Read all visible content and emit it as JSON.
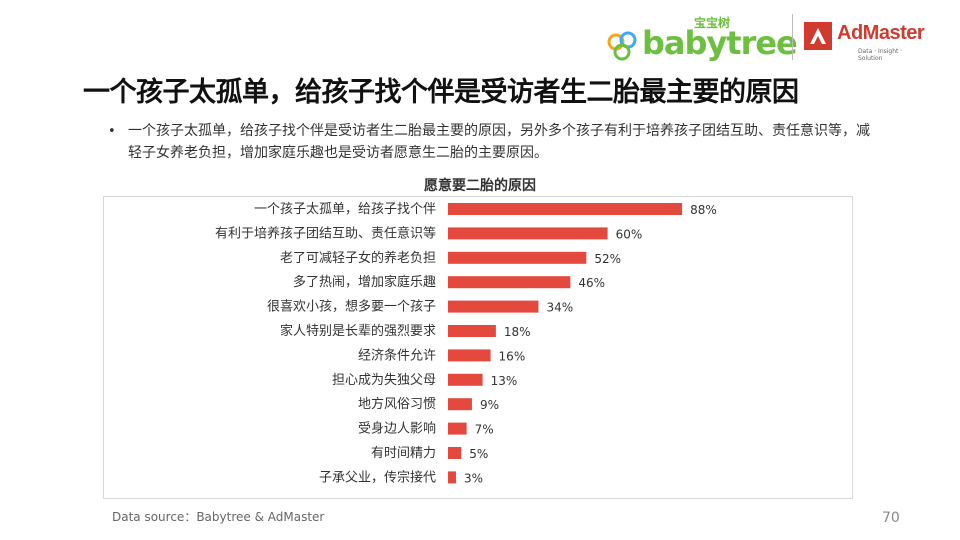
{
  "header": {
    "babytree_sub": "宝宝树",
    "babytree_name": "babytree",
    "admaster_name": "AdMaster",
    "admaster_tagline": "Data · Insight · Solution"
  },
  "slide": {
    "title": "一个孩子太孤单，给孩子找个伴是受访者生二胎最主要的原因",
    "bullet": "一个孩子太孤单，给孩子找个伴是受访者生二胎最主要的原因，另外多个孩子有利于培养孩子团结互助、责任意识等，减轻子女养老负担，增加家庭乐趣也是受访者愿意生二胎的主要原因。",
    "source": "Data source：Babytree & AdMaster",
    "page_number": "70"
  },
  "colors": {
    "bar": "#e4493e",
    "brand_green": "#6cbf3f",
    "brand_red": "#d23a2e"
  },
  "chart_data": {
    "type": "bar",
    "orientation": "horizontal",
    "title": "愿意要二胎的原因",
    "xlabel": "",
    "ylabel": "",
    "xlim": [
      0,
      100
    ],
    "grid": false,
    "categories": [
      "一个孩子太孤单，给孩子找个伴",
      "有利于培养孩子团结互助、责任意识等",
      "老了可减轻子女的养老负担",
      "多了热闹，增加家庭乐趣",
      "很喜欢小孩，想多要一个孩子",
      "家人特别是长辈的强烈要求",
      "经济条件允许",
      "担心成为失独父母",
      "地方风俗习惯",
      "受身边人影响",
      "有时间精力",
      "子承父业，传宗接代"
    ],
    "values": [
      88,
      60,
      52,
      46,
      34,
      18,
      16,
      13,
      9,
      7,
      5,
      3
    ],
    "value_labels": [
      "88%",
      "60%",
      "52%",
      "46%",
      "34%",
      "18%",
      "16%",
      "13%",
      "9%",
      "7%",
      "5%",
      "3%"
    ]
  }
}
